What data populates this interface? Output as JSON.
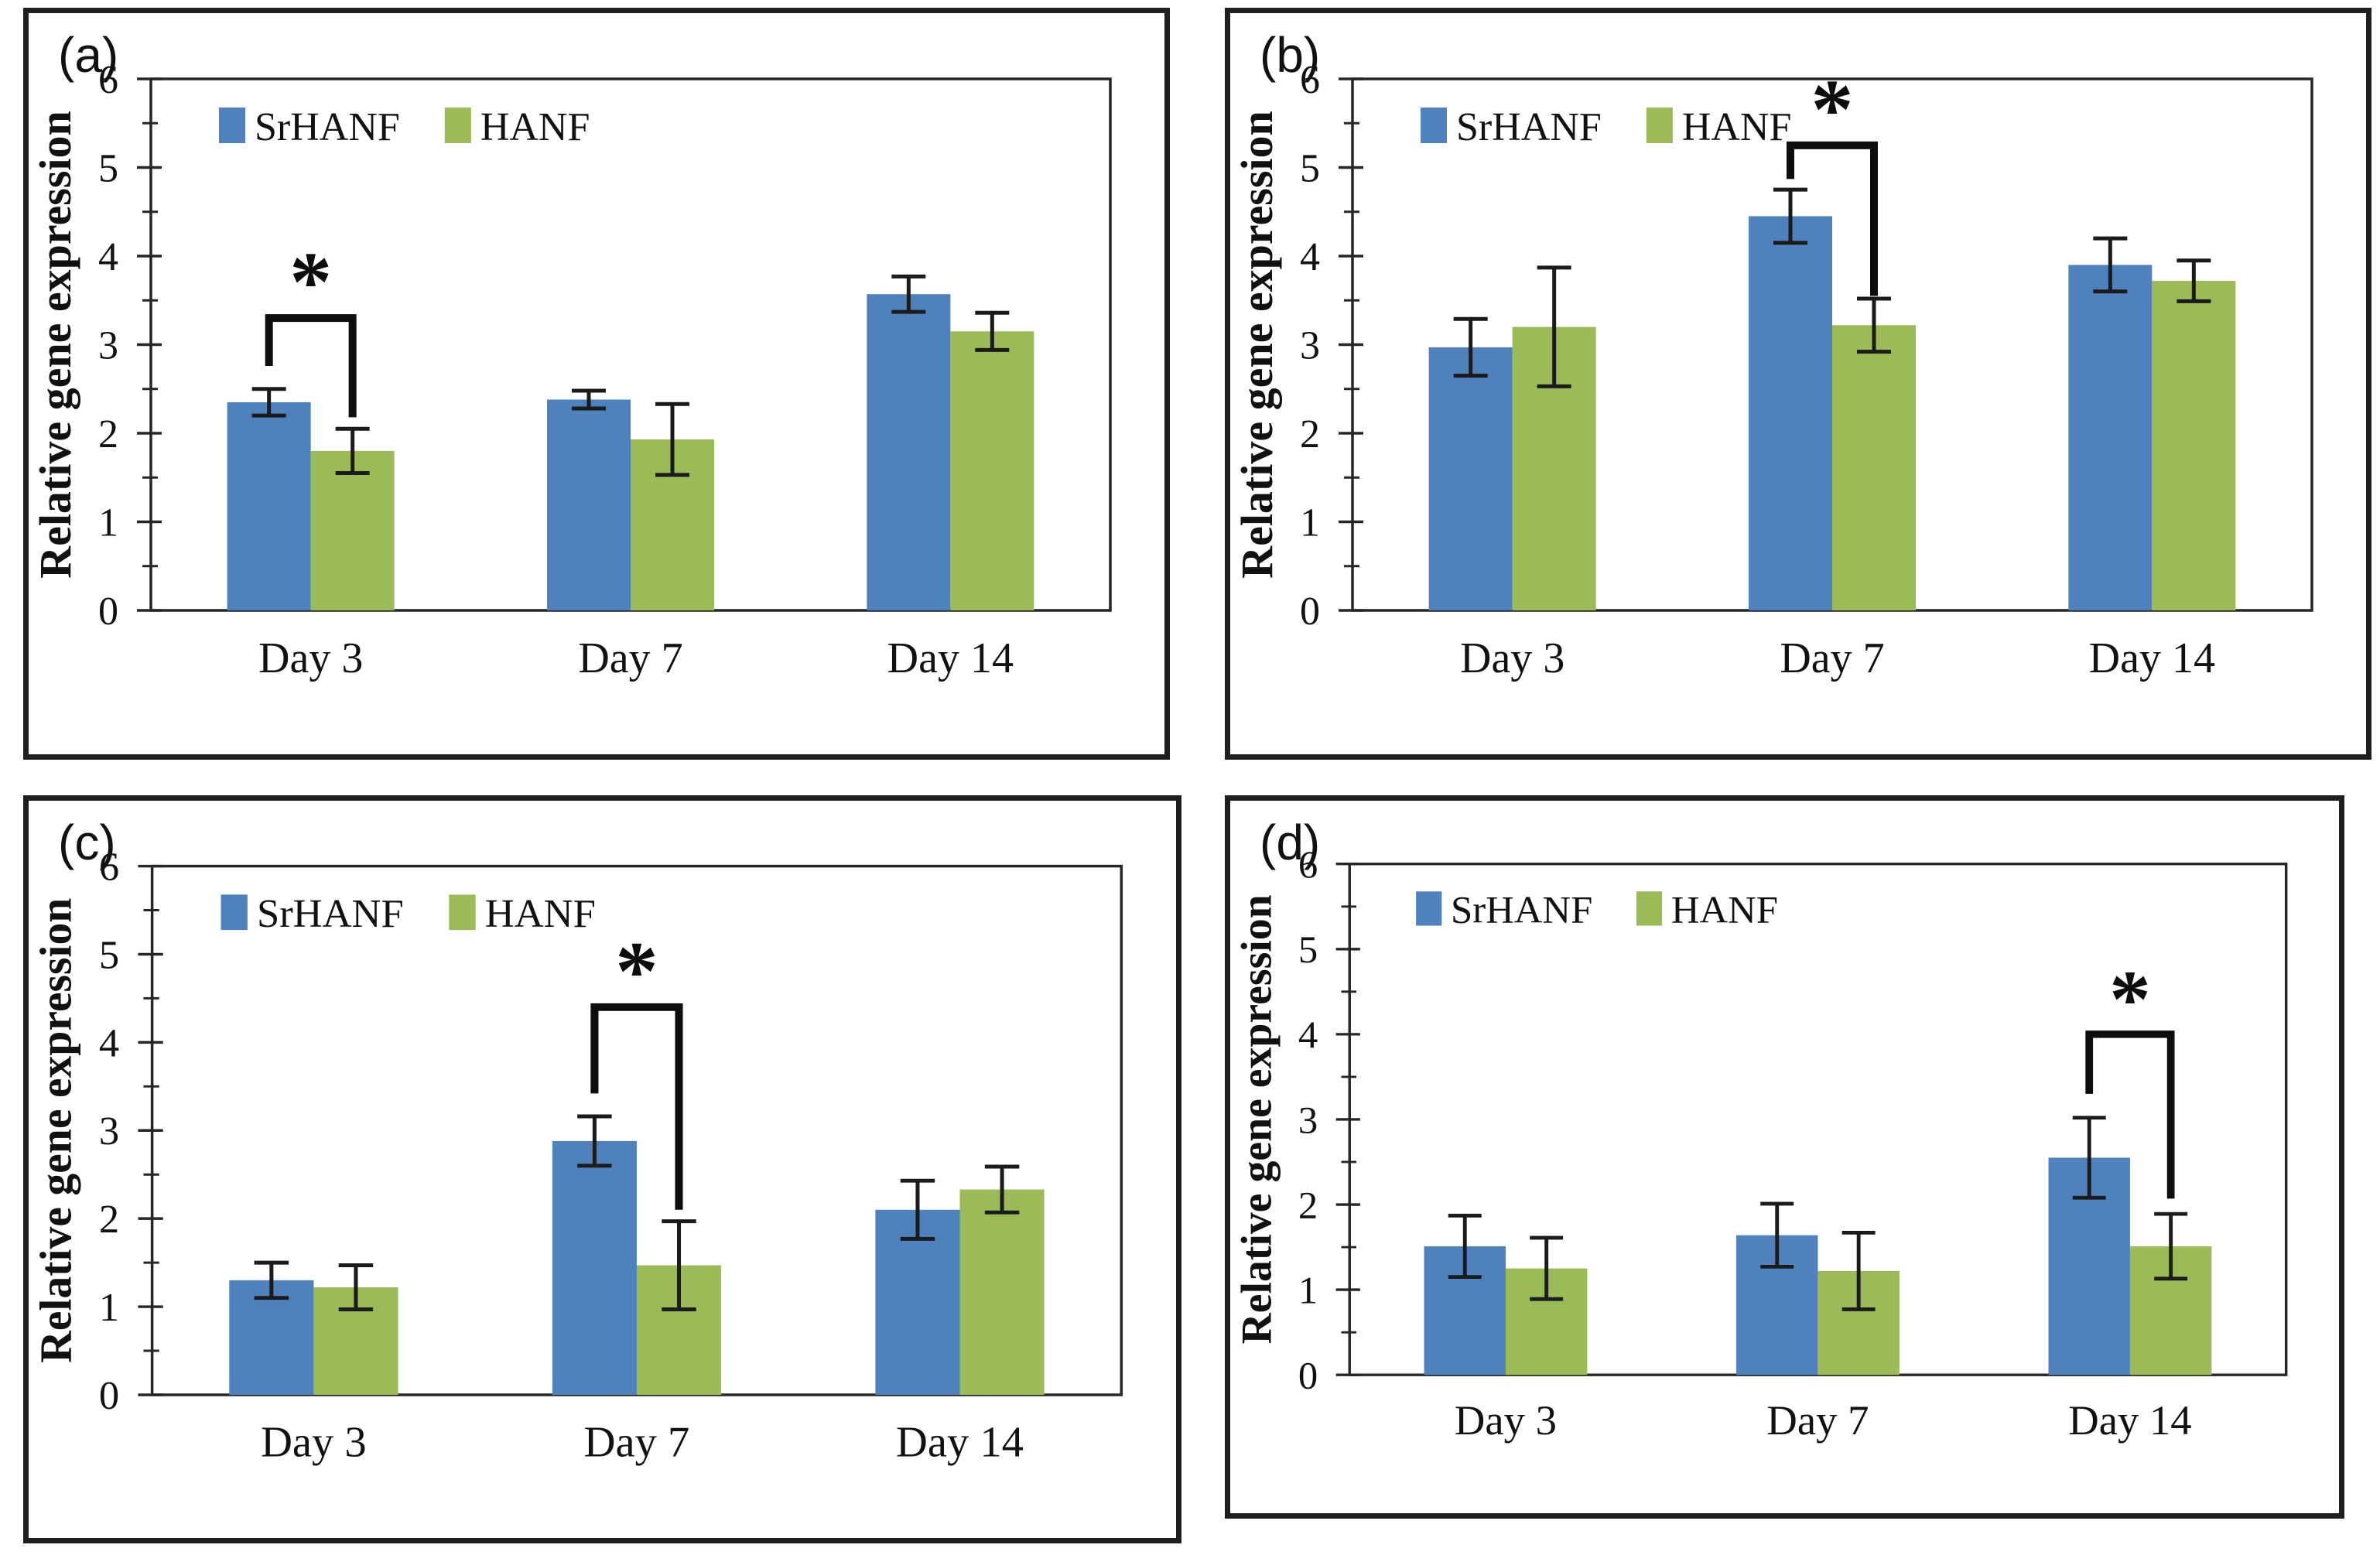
{
  "figure": {
    "background": "#ffffff",
    "panel_border_color": "#1f1f1f",
    "axis_color": "#262626",
    "text_color": "#111111",
    "error_bar_color": "#1b1b1b",
    "bracket_color": "#0d0d0d",
    "series_colors": {
      "SrHANF": "#4f81bd",
      "HANF": "#9bbb59"
    },
    "legend_swatch_blue": "legend-swatch-srhanf",
    "legend_swatch_green": "legend-swatch-hanf"
  },
  "chart_data": [
    {
      "type": "bar",
      "panel_label": "(a)",
      "ylabel": "Relative gene expression",
      "xlabel": "",
      "ylim": [
        0,
        6
      ],
      "ytick_step": 1,
      "yminor_step": 0.5,
      "grid": false,
      "legend_position": "top-left-inside",
      "categories": [
        "Day 3",
        "Day 7",
        "Day 14"
      ],
      "series": [
        {
          "name": "SrHANF",
          "color": "#4f81bd",
          "values": [
            2.35,
            2.38,
            3.57
          ],
          "errors": [
            0.15,
            0.1,
            0.2
          ]
        },
        {
          "name": "HANF",
          "color": "#9bbb59",
          "values": [
            1.8,
            1.93,
            3.15
          ],
          "errors": [
            0.25,
            0.4,
            0.21
          ]
        }
      ],
      "significance": {
        "label": "*",
        "category_index": 0,
        "top": 3.3,
        "left_drop": 2.76,
        "right_drop": 2.18
      }
    },
    {
      "type": "bar",
      "panel_label": "(b)",
      "ylabel": "Relative gene expression",
      "xlabel": "",
      "ylim": [
        0,
        6
      ],
      "ytick_step": 1,
      "yminor_step": 0.5,
      "grid": false,
      "legend_position": "top-left-inside",
      "categories": [
        "Day 3",
        "Day 7",
        "Day 14"
      ],
      "series": [
        {
          "name": "SrHANF",
          "color": "#4f81bd",
          "values": [
            2.97,
            4.45,
            3.9
          ],
          "errors": [
            0.32,
            0.3,
            0.3
          ]
        },
        {
          "name": "HANF",
          "color": "#9bbb59",
          "values": [
            3.2,
            3.22,
            3.72
          ],
          "errors": [
            0.67,
            0.3,
            0.23
          ]
        }
      ],
      "significance": {
        "label": "*",
        "category_index": 1,
        "top": 5.25,
        "left_drop": 4.87,
        "right_drop": 3.55
      }
    },
    {
      "type": "bar",
      "panel_label": "(c)",
      "ylabel": "Relative gene expression",
      "xlabel": "",
      "ylim": [
        0,
        6
      ],
      "ytick_step": 1,
      "yminor_step": 0.5,
      "grid": false,
      "legend_position": "top-left-inside",
      "categories": [
        "Day 3",
        "Day 7",
        "Day 14"
      ],
      "series": [
        {
          "name": "SrHANF",
          "color": "#4f81bd",
          "values": [
            1.3,
            2.88,
            2.1
          ],
          "errors": [
            0.2,
            0.28,
            0.33
          ]
        },
        {
          "name": "HANF",
          "color": "#9bbb59",
          "values": [
            1.22,
            1.47,
            2.33
          ],
          "errors": [
            0.25,
            0.5,
            0.26
          ]
        }
      ],
      "significance": {
        "label": "*",
        "category_index": 1,
        "top": 4.4,
        "left_drop": 3.42,
        "right_drop": 2.1
      }
    },
    {
      "type": "bar",
      "panel_label": "(d)",
      "ylabel": "Relative gene expression",
      "xlabel": "",
      "ylim": [
        0,
        6
      ],
      "ytick_step": 1,
      "yminor_step": 0.5,
      "grid": false,
      "legend_position": "top-left-inside",
      "categories": [
        "Day 3",
        "Day 7",
        "Day 14"
      ],
      "series": [
        {
          "name": "SrHANF",
          "color": "#4f81bd",
          "values": [
            1.51,
            1.64,
            2.55
          ],
          "errors": [
            0.36,
            0.37,
            0.47
          ]
        },
        {
          "name": "HANF",
          "color": "#9bbb59",
          "values": [
            1.25,
            1.22,
            1.51
          ],
          "errors": [
            0.36,
            0.45,
            0.38
          ]
        }
      ],
      "significance": {
        "label": "*",
        "category_index": 2,
        "top": 4.0,
        "left_drop": 3.3,
        "right_drop": 2.07
      }
    }
  ]
}
